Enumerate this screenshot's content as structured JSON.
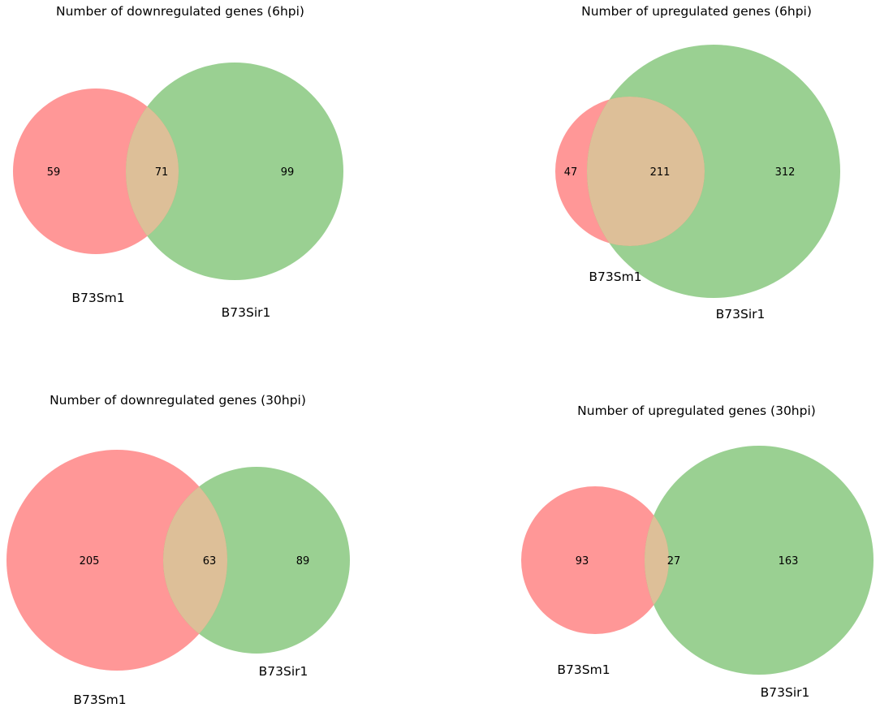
{
  "colors": {
    "set_a": "#ff6b6b",
    "set_b": "#56b04a",
    "overlap": "#ddbf98"
  },
  "chart_data": [
    {
      "type": "venn2",
      "title": "Number of downregulated genes (6hpi)",
      "sets": [
        "B73Sm1",
        "B73Sir1"
      ],
      "counts": {
        "only_a": "59",
        "both": "71",
        "only_b": "99"
      }
    },
    {
      "type": "venn2",
      "title": "Number of upregulated genes (6hpi)",
      "sets": [
        "B73Sm1",
        "B73Sir1"
      ],
      "counts": {
        "only_a": "47",
        "both": "211",
        "only_b": "312"
      }
    },
    {
      "type": "venn2",
      "title": "Number of downregulated genes (30hpi)",
      "sets": [
        "B73Sm1",
        "B73Sir1"
      ],
      "counts": {
        "only_a": "205",
        "both": "63",
        "only_b": "89"
      }
    },
    {
      "type": "venn2",
      "title": "Number of upregulated genes (30hpi)",
      "sets": [
        "B73Sm1",
        "B73Sir1"
      ],
      "counts": {
        "only_a": "93",
        "both": "27",
        "only_b": "163"
      }
    }
  ]
}
